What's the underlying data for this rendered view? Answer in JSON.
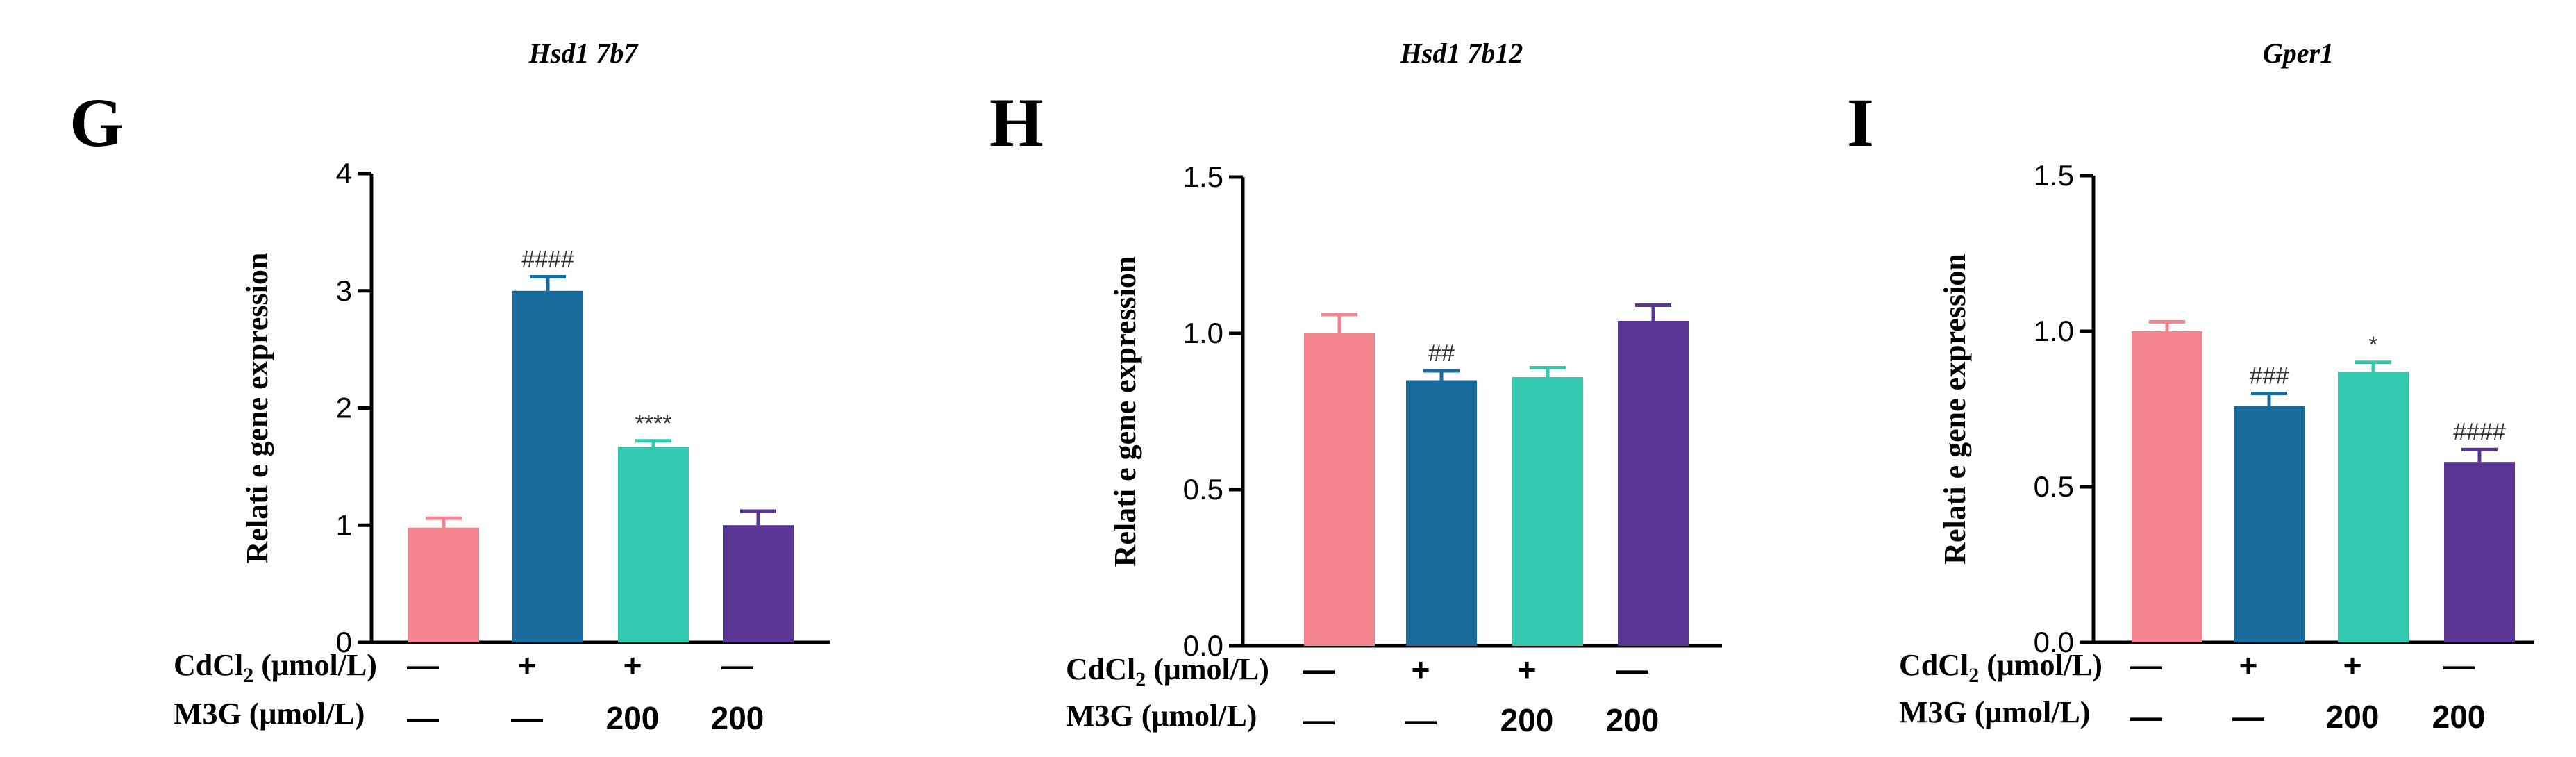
{
  "colors": {
    "control": "#f2838f",
    "cdcl2": "#186b9a",
    "cdcl2_m3g": "#33c8b0",
    "m3g": "#5a3593"
  },
  "condition_rows": {
    "cdcl2_label_main": "CdCl",
    "cdcl2_label_sub": "2",
    "cdcl2_label_unit": " (μmol/L)",
    "m3g_label": "M3G (μmol/L)",
    "cdcl2_values": [
      "—",
      "+",
      "+",
      "—"
    ],
    "m3g_values": [
      "—",
      "—",
      "200",
      "200"
    ]
  },
  "chart_data": [
    {
      "panel": "G",
      "type": "bar",
      "title": "Hsd1 7b7",
      "ylabel": "Relati e gene expression",
      "ylim": [
        0,
        4
      ],
      "yticks": [
        "0",
        "1",
        "2",
        "3",
        "4"
      ],
      "categories": [
        "Control",
        "CdCl2",
        "CdCl2 + M3G 200",
        "M3G 200"
      ],
      "values": [
        0.98,
        3.0,
        1.67,
        1.0
      ],
      "errors": [
        0.08,
        0.12,
        0.05,
        0.12
      ],
      "significance": [
        "",
        "####",
        "****",
        ""
      ]
    },
    {
      "panel": "H",
      "type": "bar",
      "title": "Hsd1 7b12",
      "ylabel": "Relati e gene expression",
      "ylim": [
        0,
        1.5
      ],
      "yticks": [
        "0.0",
        "0.5",
        "1.0",
        "1.5"
      ],
      "categories": [
        "Control",
        "CdCl2",
        "CdCl2 + M3G 200",
        "M3G 200"
      ],
      "values": [
        1.0,
        0.85,
        0.86,
        1.04
      ],
      "errors": [
        0.06,
        0.03,
        0.03,
        0.05
      ],
      "significance": [
        "",
        "##",
        "",
        ""
      ]
    },
    {
      "panel": "I",
      "type": "bar",
      "title": "Gper1",
      "ylabel": "Relati e gene expression",
      "ylim": [
        0,
        1.5
      ],
      "yticks": [
        "0.0",
        "0.5",
        "1.0",
        "1.5"
      ],
      "categories": [
        "Control",
        "CdCl2",
        "CdCl2 + M3G 200",
        "M3G 200"
      ],
      "values": [
        1.0,
        0.76,
        0.87,
        0.58
      ],
      "errors": [
        0.03,
        0.04,
        0.03,
        0.04
      ],
      "significance": [
        "",
        "###",
        "*",
        "####"
      ]
    }
  ]
}
